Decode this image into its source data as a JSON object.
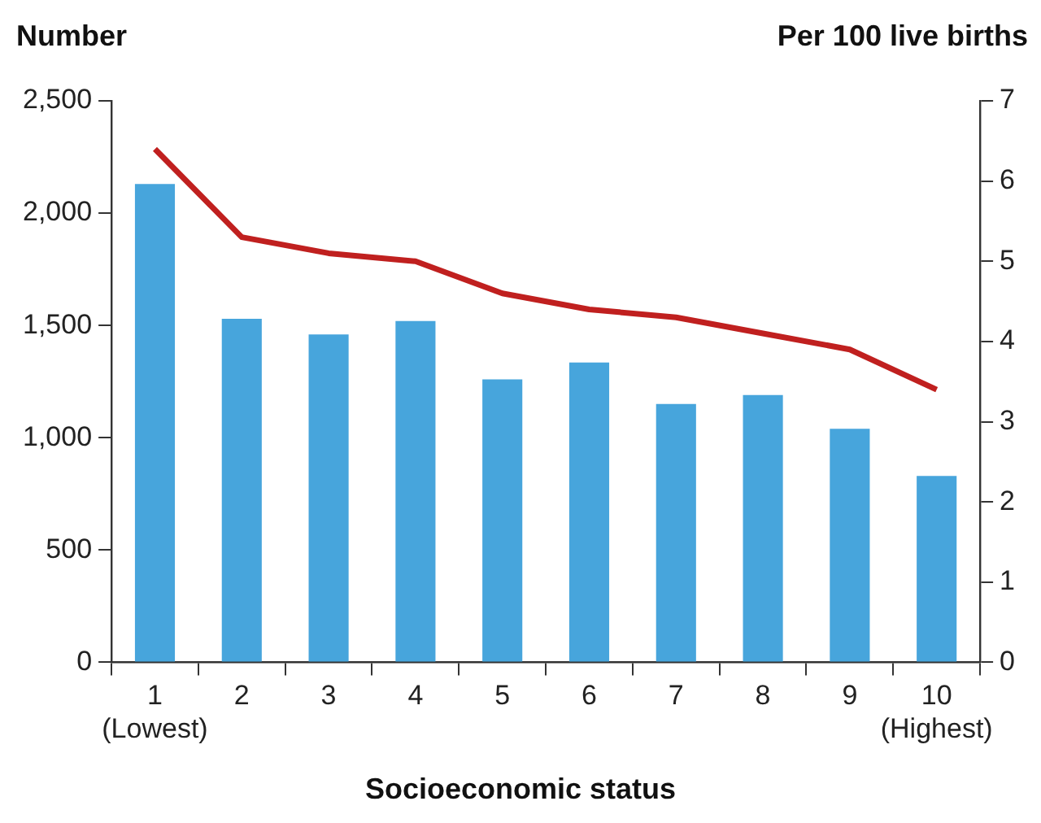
{
  "chart_data": {
    "type": "bar",
    "xlabel": "Socioeconomic status",
    "ylabel": "Number",
    "y2label": "Per 100 live births",
    "categories": [
      "1\n(Lowest)",
      "2",
      "3",
      "4",
      "5",
      "6",
      "7",
      "8",
      "9",
      "10\n(Highest)"
    ],
    "series": [
      {
        "color": "#47a5dc",
        "values": [
          2130,
          1530,
          1460,
          1520,
          1260,
          1335,
          1150,
          1190,
          1040,
          830
        ]
      },
      {
        "type": "line",
        "axis": "y2",
        "color": "#c0201f",
        "values": [
          6.4,
          5.3,
          5.1,
          5.0,
          4.6,
          4.4,
          4.3,
          4.1,
          3.9,
          3.4
        ]
      }
    ],
    "ylim": [
      0,
      2500
    ],
    "yticks": [
      {
        "value": 0,
        "label": "0"
      },
      {
        "value": 500,
        "label": "500"
      },
      {
        "value": 1000,
        "label": "1,000"
      },
      {
        "value": 1500,
        "label": "1,500"
      },
      {
        "value": 2000,
        "label": "2,000"
      },
      {
        "value": 2500,
        "label": "2,500"
      }
    ],
    "y2lim": [
      0,
      7
    ],
    "y2ticks": [
      0,
      1,
      2,
      3,
      4,
      5,
      6,
      7
    ],
    "grid": false,
    "legend": false,
    "marker": "none",
    "line_style": "solid"
  }
}
